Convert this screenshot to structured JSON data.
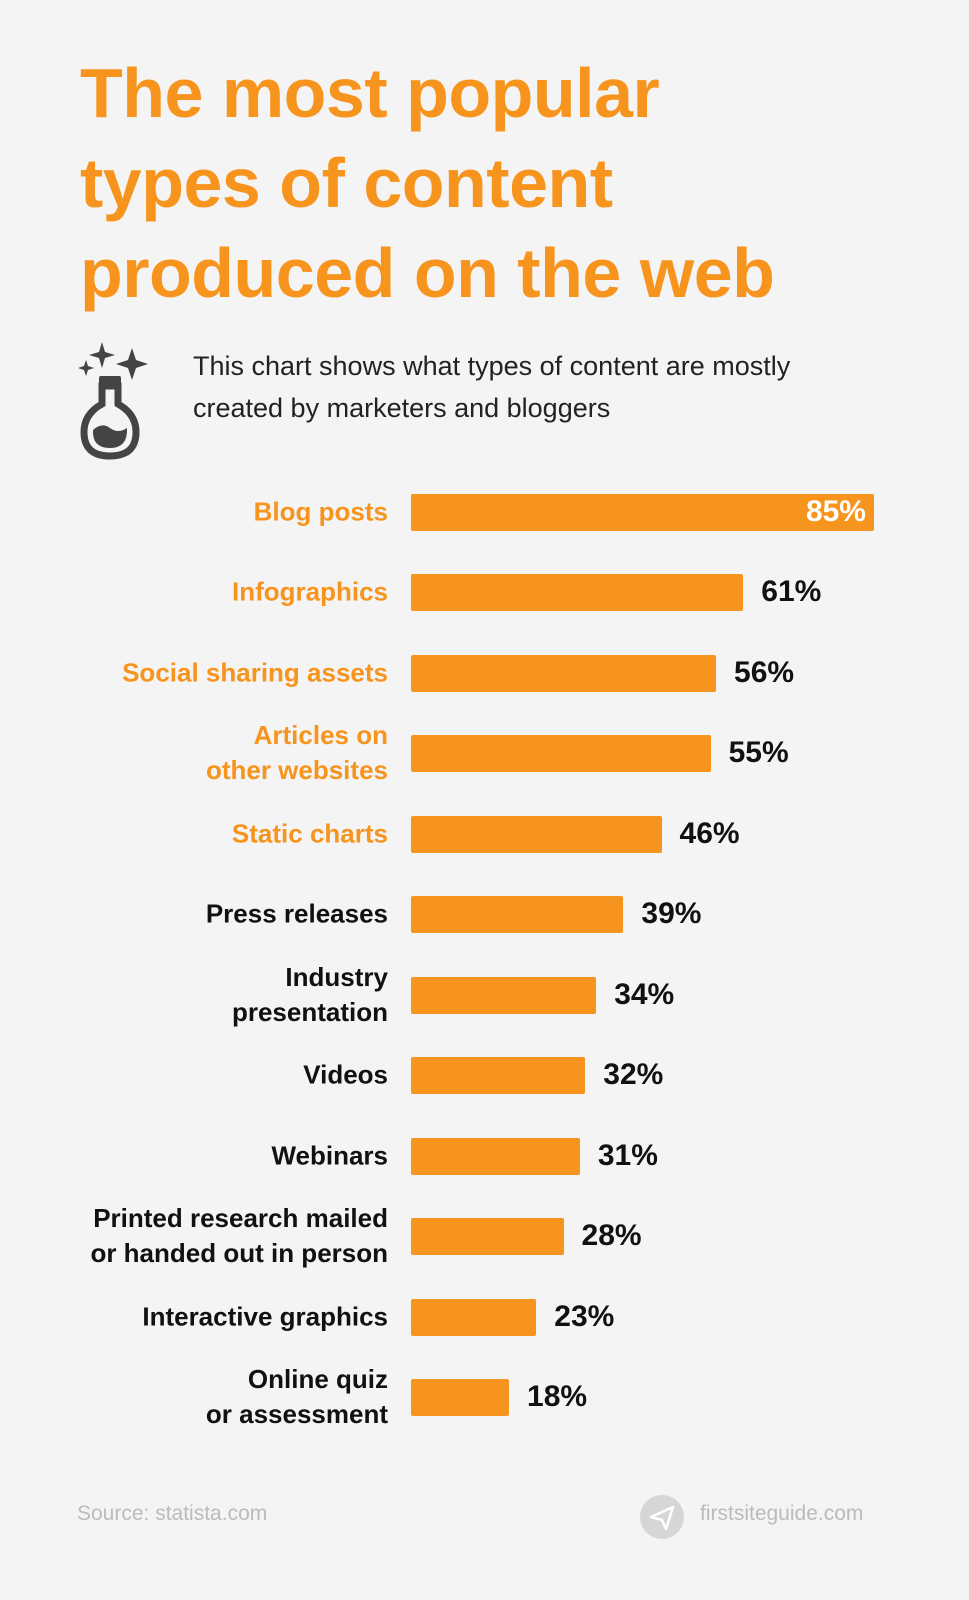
{
  "chart_data": {
    "type": "bar",
    "orientation": "horizontal",
    "title": "The most popular\ntypes of content\nproduced on the web",
    "subtitle": "This chart shows what types of content are mostly\ncreated by marketers and bloggers",
    "categories": [
      "Blog posts",
      "Infographics",
      "Social sharing assets",
      "Articles on\nother websites",
      "Static charts",
      "Press releases",
      "Industry\npresentation",
      "Videos",
      "Webinars",
      "Printed research mailed\nor handed out in person",
      "Interactive graphics",
      "Online quiz\nor assessment"
    ],
    "category_colors": [
      "#f7941d",
      "#f7941d",
      "#f7941d",
      "#f7941d",
      "#f7941d",
      "#111111",
      "#111111",
      "#111111",
      "#111111",
      "#111111",
      "#111111",
      "#111111"
    ],
    "values": [
      85,
      61,
      56,
      55,
      46,
      39,
      34,
      32,
      31,
      28,
      23,
      18
    ],
    "value_labels": [
      "85%",
      "61%",
      "56%",
      "55%",
      "46%",
      "39%",
      "34%",
      "32%",
      "31%",
      "28%",
      "23%",
      "18%"
    ],
    "color": "#f7941d",
    "source": "Source: statista.com",
    "brand": "firstsiteguide.com"
  }
}
